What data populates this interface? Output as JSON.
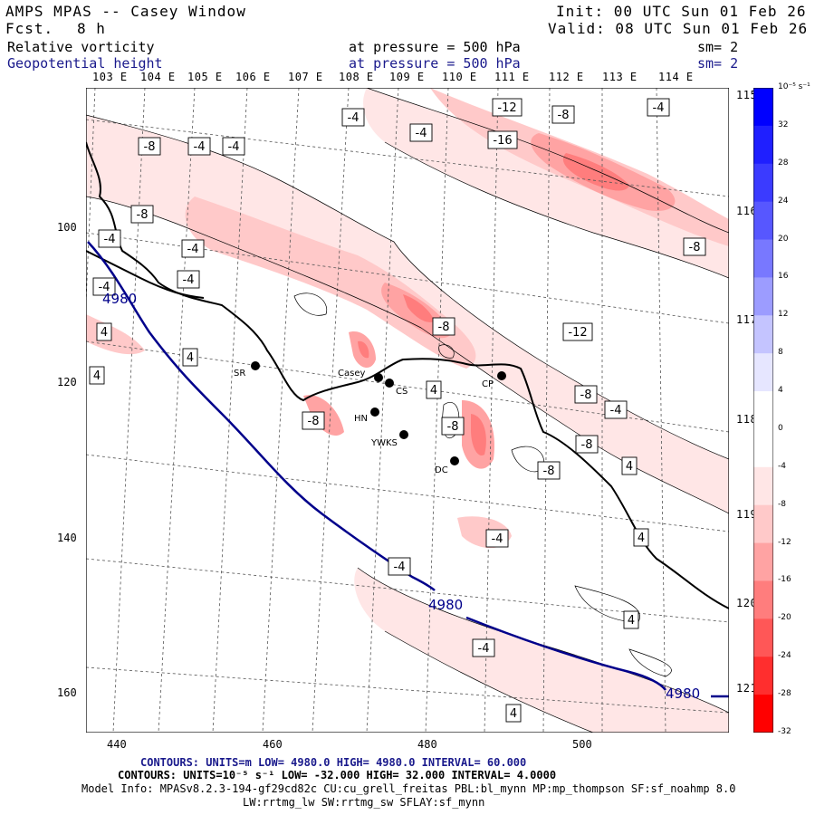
{
  "header": {
    "title": "AMPS MPAS -- Casey Window",
    "fcst_label": "Fcst.",
    "fcst_value": "8 h",
    "init": "Init: 00 UTC Sun 01 Feb 26",
    "valid": "Valid: 08 UTC Sun 01 Feb 26",
    "field1": "Relative vorticity",
    "field1_pressure": "at pressure =  500 hPa",
    "field1_sm": "sm= 2",
    "field2": "Geopotential height",
    "field2_pressure": "at pressure =  500 hPa",
    "field2_sm": "sm= 2"
  },
  "axes": {
    "top_lon_labels": [
      "103 E",
      "104 E",
      "105 E",
      "106 E",
      "107 E",
      "108 E",
      "109 E",
      "110 E",
      "111 E",
      "112 E",
      "113 E",
      "114 E"
    ],
    "right_lon_labels": [
      "115 E",
      "116 E",
      "117 E",
      "118 E",
      "119 E",
      "120 E",
      "121 E"
    ],
    "x_ticks": [
      "440",
      "460",
      "480",
      "500"
    ],
    "y_ticks": [
      "100",
      "120",
      "140",
      "160"
    ]
  },
  "stations": [
    {
      "name": "SR"
    },
    {
      "name": "Casey"
    },
    {
      "name": "CS"
    },
    {
      "name": "CP"
    },
    {
      "name": "HN"
    },
    {
      "name": "YWKS"
    },
    {
      "name": "DC"
    }
  ],
  "contour_labels": {
    "vorticity": [
      "-4",
      "-4",
      "-8",
      "-4",
      "-4",
      "-12",
      "-8",
      "-4",
      "-16",
      "-8",
      "-4",
      "-4",
      "-4",
      "-4",
      "4",
      "-8",
      "-12",
      "4",
      "4",
      "4",
      "-8",
      "-8",
      "-8",
      "-4",
      "-8",
      "-8",
      "4",
      "-8",
      "4",
      "-4",
      "-4",
      "4",
      "-4",
      "4"
    ],
    "height": [
      "4980",
      "4980",
      "4980"
    ]
  },
  "colorbar": {
    "units": "10⁻⁵ s⁻¹",
    "labels": [
      "32",
      "28",
      "24",
      "20",
      "16",
      "12",
      "8",
      "4",
      "0",
      "-4",
      "-8",
      "-12",
      "-16",
      "-20",
      "-24",
      "-28",
      "-32"
    ],
    "colors": [
      "#0000ff",
      "#1f1fff",
      "#3b3bff",
      "#5757ff",
      "#7878ff",
      "#9c9cff",
      "#c4c4ff",
      "#e6e6ff",
      "#ffffff",
      "#ffffff",
      "#ffe6e6",
      "#ffc9c9",
      "#ffa3a3",
      "#ff7d7d",
      "#ff5757",
      "#ff2e2e",
      "#ff0000"
    ]
  },
  "footer": {
    "line1": "CONTOURS:  UNITS=m  LOW=  4980.0         HIGH=  4980.0        INTERVAL=   60.000",
    "line2": "CONTOURS:  UNITS=10⁻⁵ s⁻¹  LOW= -32.000        HIGH=  32.000      INTERVAL=   4.0000",
    "line3": "Model Info: MPASv8.2.3-194-gf29cd82c CU:cu_grell_freitas PBL:bl_mynn MP:mp_thompson SF:sf_noahmp 8.0",
    "line4": "LW:rrtmg_lw SW:rrtmg_sw SFLAY:sf_mynn"
  }
}
